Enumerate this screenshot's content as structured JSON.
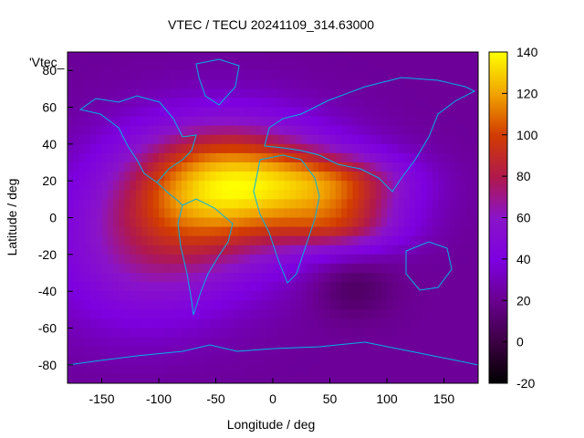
{
  "chart_data": {
    "type": "heatmap",
    "title": "VTEC / TECU 20241109_314.63000",
    "xlabel": "Longitude / deg",
    "ylabel": "Latitude / deg",
    "series_label": "'Vtec_",
    "xlim": [
      -180,
      180
    ],
    "ylim": [
      -90,
      90
    ],
    "xticks": [
      -150,
      -100,
      -50,
      0,
      50,
      100,
      150
    ],
    "yticks": [
      80,
      60,
      40,
      20,
      0,
      -20,
      -40,
      -60,
      -80
    ],
    "colorbar": {
      "range": [
        -20,
        140
      ],
      "ticks": [
        140,
        120,
        100,
        80,
        60,
        40,
        20,
        0,
        -20
      ],
      "palette": "black-purple-red-orange-yellow"
    },
    "field_description_blobs": [
      {
        "lon": -30,
        "lat": 20,
        "sx": 60,
        "sy": 22,
        "amp": 75
      },
      {
        "lon": -60,
        "lat": 5,
        "sx": 60,
        "sy": 30,
        "amp": 40
      },
      {
        "lon": 60,
        "lat": 18,
        "sx": 45,
        "sy": 12,
        "amp": 55
      },
      {
        "lon": 60,
        "lat": -5,
        "sx": 40,
        "sy": 10,
        "amp": 45
      },
      {
        "lon": -120,
        "lat": -20,
        "sx": 55,
        "sy": 30,
        "amp": 30
      },
      {
        "lon": 70,
        "lat": -38,
        "sx": 25,
        "sy": 12,
        "amp": -15
      }
    ],
    "field_base": 22
  },
  "colors": {
    "coastline": "#00b4e6",
    "frame": "#000000"
  }
}
